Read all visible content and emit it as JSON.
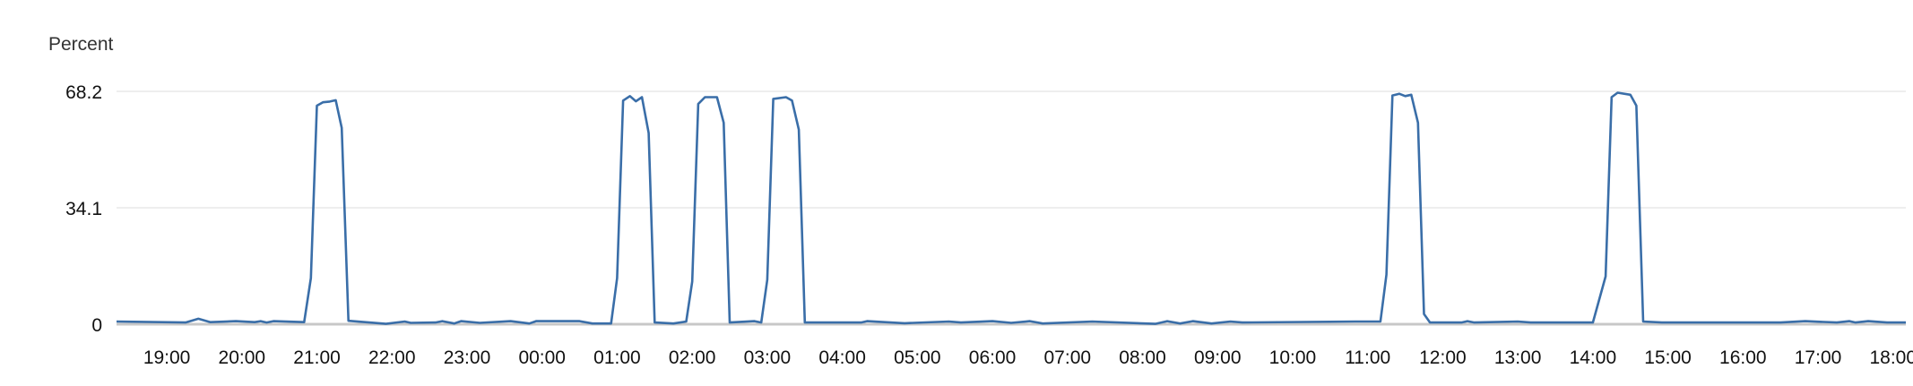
{
  "chart_data": {
    "type": "line",
    "ylabel": "Percent",
    "ylim": [
      0,
      68.2
    ],
    "y_ticks": [
      "0",
      "34.1",
      "68.2"
    ],
    "x_ticks": [
      "19:00",
      "20:00",
      "21:00",
      "22:00",
      "23:00",
      "00:00",
      "01:00",
      "02:00",
      "03:00",
      "04:00",
      "05:00",
      "06:00",
      "07:00",
      "08:00",
      "09:00",
      "10:00",
      "11:00",
      "12:00",
      "13:00",
      "14:00",
      "15:00",
      "16:00",
      "17:00",
      "18:00"
    ],
    "x_range_hours": [
      18.33,
      42.17
    ],
    "grid": true,
    "series": [
      {
        "color": "#3a6ea8",
        "points": [
          [
            18.33,
            0.8
          ],
          [
            19.25,
            0.5
          ],
          [
            19.42,
            1.6
          ],
          [
            19.58,
            0.6
          ],
          [
            19.92,
            0.9
          ],
          [
            20.17,
            0.6
          ],
          [
            20.25,
            0.9
          ],
          [
            20.33,
            0.5
          ],
          [
            20.42,
            0.9
          ],
          [
            20.83,
            0.6
          ],
          [
            20.92,
            13.5
          ],
          [
            21.0,
            64.0
          ],
          [
            21.08,
            65.0
          ],
          [
            21.17,
            65.2
          ],
          [
            21.25,
            65.6
          ],
          [
            21.33,
            57.5
          ],
          [
            21.42,
            1.0
          ],
          [
            21.92,
            0.1
          ],
          [
            22.17,
            0.8
          ],
          [
            22.25,
            0.4
          ],
          [
            22.58,
            0.5
          ],
          [
            22.67,
            0.9
          ],
          [
            22.83,
            0.2
          ],
          [
            22.92,
            0.9
          ],
          [
            23.17,
            0.4
          ],
          [
            23.58,
            0.9
          ],
          [
            23.83,
            0.2
          ],
          [
            23.92,
            0.9
          ],
          [
            24.5,
            0.9
          ],
          [
            24.67,
            0.2
          ],
          [
            24.92,
            0.2
          ],
          [
            25.0,
            13.5
          ],
          [
            25.08,
            65.5
          ],
          [
            25.17,
            66.8
          ],
          [
            25.25,
            65.3
          ],
          [
            25.33,
            66.5
          ],
          [
            25.42,
            56.0
          ],
          [
            25.5,
            0.5
          ],
          [
            25.75,
            0.2
          ],
          [
            25.92,
            0.8
          ],
          [
            26.0,
            12.5
          ],
          [
            26.08,
            64.5
          ],
          [
            26.17,
            66.5
          ],
          [
            26.33,
            66.5
          ],
          [
            26.42,
            59.0
          ],
          [
            26.5,
            0.5
          ],
          [
            26.83,
            0.9
          ],
          [
            26.92,
            0.5
          ],
          [
            27.0,
            13.0
          ],
          [
            27.08,
            66.0
          ],
          [
            27.25,
            66.5
          ],
          [
            27.33,
            65.5
          ],
          [
            27.42,
            57.0
          ],
          [
            27.5,
            0.5
          ],
          [
            28.25,
            0.5
          ],
          [
            28.33,
            0.9
          ],
          [
            28.83,
            0.3
          ],
          [
            29.42,
            0.8
          ],
          [
            29.58,
            0.5
          ],
          [
            30.0,
            0.9
          ],
          [
            30.25,
            0.4
          ],
          [
            30.5,
            0.9
          ],
          [
            30.67,
            0.2
          ],
          [
            31.33,
            0.8
          ],
          [
            32.17,
            0.1
          ],
          [
            32.33,
            0.9
          ],
          [
            32.5,
            0.2
          ],
          [
            32.67,
            0.9
          ],
          [
            32.92,
            0.2
          ],
          [
            33.17,
            0.8
          ],
          [
            33.33,
            0.5
          ],
          [
            34.83,
            0.8
          ],
          [
            35.17,
            0.8
          ],
          [
            35.25,
            14.5
          ],
          [
            35.33,
            67.0
          ],
          [
            35.42,
            67.5
          ],
          [
            35.5,
            66.8
          ],
          [
            35.58,
            67.2
          ],
          [
            35.67,
            59.0
          ],
          [
            35.75,
            3.0
          ],
          [
            35.83,
            0.5
          ],
          [
            36.25,
            0.5
          ],
          [
            36.33,
            0.9
          ],
          [
            36.42,
            0.5
          ],
          [
            37.0,
            0.8
          ],
          [
            37.17,
            0.5
          ],
          [
            38.0,
            0.5
          ],
          [
            38.17,
            14.0
          ],
          [
            38.25,
            66.5
          ],
          [
            38.33,
            67.8
          ],
          [
            38.5,
            67.2
          ],
          [
            38.58,
            64.0
          ],
          [
            38.67,
            0.8
          ],
          [
            38.92,
            0.5
          ],
          [
            40.5,
            0.5
          ],
          [
            40.83,
            0.9
          ],
          [
            41.25,
            0.5
          ],
          [
            41.42,
            0.9
          ],
          [
            41.5,
            0.5
          ],
          [
            41.67,
            0.9
          ],
          [
            41.92,
            0.5
          ],
          [
            42.17,
            0.5
          ]
        ]
      }
    ]
  }
}
